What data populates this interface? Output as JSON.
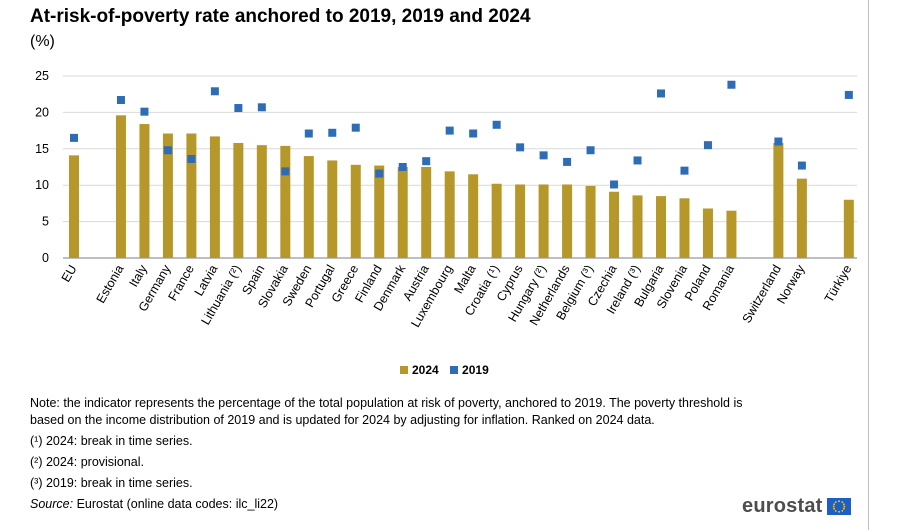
{
  "title": "At-risk-of-poverty rate anchored to 2019, 2019 and 2024",
  "subtitle": "(%)",
  "colors": {
    "bar_2024": "#b5972a",
    "dot_2019": "#2e6cb5",
    "grid": "#d9d9d9"
  },
  "chart_data": {
    "type": "bar",
    "categories": [
      "EU",
      "Estonia",
      "Italy",
      "Germany",
      "France",
      "Latvia",
      "Lithuania (²)",
      "Spain",
      "Slovakia",
      "Sweden",
      "Portugal",
      "Greece",
      "Finland",
      "Denmark",
      "Austria",
      "Luxembourg",
      "Malta",
      "Croatia (¹)",
      "Cyprus",
      "Hungary (²)",
      "Netherlands",
      "Belgium (³)",
      "Czechia",
      "Ireland (³)",
      "Bulgaria",
      "Slovenia",
      "Poland",
      "Romania",
      "Switzerland",
      "Norway",
      "Türkiye"
    ],
    "gaps_before": [
      1,
      28,
      30
    ],
    "series": [
      {
        "name": "2024",
        "kind": "bar",
        "values": [
          14.1,
          19.6,
          18.4,
          17.1,
          17.1,
          16.7,
          15.8,
          15.5,
          15.4,
          14.0,
          13.4,
          12.8,
          12.7,
          12.5,
          12.5,
          11.9,
          11.5,
          10.2,
          10.1,
          10.1,
          10.1,
          9.9,
          9.1,
          8.6,
          8.5,
          8.2,
          6.8,
          6.5,
          15.8,
          10.9,
          8.0
        ]
      },
      {
        "name": "2019",
        "kind": "marker",
        "values": [
          16.5,
          21.7,
          20.1,
          14.8,
          13.6,
          22.9,
          20.6,
          20.7,
          11.9,
          17.1,
          17.2,
          17.9,
          11.6,
          12.5,
          13.3,
          17.5,
          17.1,
          18.3,
          15.2,
          14.1,
          13.2,
          14.8,
          10.1,
          13.4,
          22.6,
          12.0,
          15.5,
          23.8,
          16.0,
          12.7,
          22.4
        ]
      }
    ],
    "ylim": [
      0,
      25
    ],
    "yticks": [
      0,
      5,
      10,
      15,
      20,
      25
    ],
    "ytick_labels": [
      "0",
      "5",
      "10",
      "15",
      "20",
      "25"
    ],
    "grid": true,
    "legend": [
      "2024",
      "2019"
    ],
    "legend_position": "bottom-center",
    "xlabel": "",
    "ylabel": ""
  },
  "notes": {
    "main": "Note: the indicator represents the percentage of the total population at risk of poverty, anchored to 2019. The poverty threshold is based on the income distribution of 2019 and is updated for 2024 by adjusting for inflation. Ranked on 2024 data.",
    "footnote_1": "(¹) 2024: break in time series.",
    "footnote_2": "(²) 2024: provisional.",
    "footnote_3": "(³) 2019: break in time series.",
    "source_label": "Source:",
    "source_text": "Eurostat (online data codes: ilc_li22)"
  },
  "logo": {
    "text": "eurostat",
    "icon": "eu-flag-icon"
  }
}
